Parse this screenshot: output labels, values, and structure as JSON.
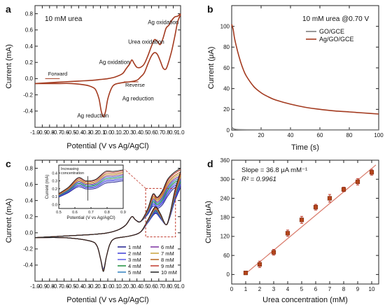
{
  "chart_data": [
    {
      "panel": "a",
      "type": "line",
      "annotation_title": "10 mM urea",
      "xlabel": "Potential (V vs Ag/AgCl)",
      "ylabel": "Current (mA)",
      "xlim": [
        -1.0,
        1.0
      ],
      "ylim": [
        -0.6,
        0.9
      ],
      "xticks": [
        -1.0,
        -0.9,
        -0.8,
        -0.7,
        -0.6,
        -0.5,
        -0.4,
        -0.3,
        -0.2,
        -0.1,
        0.0,
        0.1,
        0.2,
        0.3,
        0.4,
        0.5,
        0.6,
        0.7,
        0.8,
        0.9,
        1.0
      ],
      "xtick_labels": [
        "-1.0",
        "-0.9",
        "-0.8",
        "-0.7",
        "-0.6",
        "-0.5",
        "-0.4",
        "-0.3",
        "-0.2",
        "-0.1",
        "0.0",
        "0.1",
        "0.2",
        "0.3",
        "0.4",
        "0.5",
        "0.6",
        "0.7",
        "0.8",
        "0.9",
        "1.0"
      ],
      "yticks": [
        -0.4,
        -0.2,
        0.0,
        0.2,
        0.4,
        0.6,
        0.8
      ],
      "ytick_labels": [
        "-0.4",
        "-0.2",
        "0.0",
        "0.2",
        "0.4",
        "0.6",
        "0.8"
      ],
      "annotations": [
        "Forward",
        "Reverse",
        "Ag oxidation",
        "Urea oxidation",
        "Ag oxidation",
        "Ag reduction",
        "Ag reduction"
      ],
      "series": [
        {
          "color": "#a33a1f",
          "forward": [
            [
              -1.0,
              -0.06
            ],
            [
              -0.8,
              -0.05
            ],
            [
              -0.6,
              -0.04
            ],
            [
              -0.4,
              -0.03
            ],
            [
              -0.2,
              -0.02
            ],
            [
              -0.1,
              -0.01
            ],
            [
              0.0,
              0.0
            ],
            [
              0.1,
              0.02
            ],
            [
              0.2,
              0.06
            ],
            [
              0.25,
              0.12
            ],
            [
              0.3,
              0.18
            ],
            [
              0.33,
              0.23
            ],
            [
              0.36,
              0.19
            ],
            [
              0.4,
              0.14
            ],
            [
              0.45,
              0.14
            ],
            [
              0.5,
              0.18
            ],
            [
              0.55,
              0.28
            ],
            [
              0.6,
              0.4
            ],
            [
              0.64,
              0.48
            ],
            [
              0.68,
              0.46
            ],
            [
              0.72,
              0.42
            ],
            [
              0.76,
              0.5
            ],
            [
              0.8,
              0.62
            ],
            [
              0.84,
              0.66
            ],
            [
              0.88,
              0.72
            ],
            [
              0.92,
              0.76
            ],
            [
              0.96,
              0.77
            ],
            [
              1.0,
              0.8
            ]
          ],
          "reverse": [
            [
              1.0,
              0.79
            ],
            [
              0.96,
              0.7
            ],
            [
              0.92,
              0.52
            ],
            [
              0.88,
              0.35
            ],
            [
              0.84,
              0.22
            ],
            [
              0.8,
              0.12
            ],
            [
              0.76,
              0.13
            ],
            [
              0.72,
              0.22
            ],
            [
              0.68,
              0.3
            ],
            [
              0.64,
              0.32
            ],
            [
              0.6,
              0.28
            ],
            [
              0.55,
              0.18
            ],
            [
              0.5,
              0.07
            ],
            [
              0.45,
              0.02
            ],
            [
              0.4,
              -0.02
            ],
            [
              0.3,
              -0.04
            ],
            [
              0.2,
              -0.05
            ],
            [
              0.1,
              -0.07
            ],
            [
              0.05,
              -0.12
            ],
            [
              0.0,
              -0.25
            ],
            [
              -0.03,
              -0.4
            ],
            [
              -0.06,
              -0.47
            ],
            [
              -0.09,
              -0.4
            ],
            [
              -0.12,
              -0.25
            ],
            [
              -0.16,
              -0.15
            ],
            [
              -0.2,
              -0.11
            ],
            [
              -0.3,
              -0.08
            ],
            [
              -0.5,
              -0.06
            ],
            [
              -0.7,
              -0.06
            ],
            [
              -1.0,
              -0.06
            ]
          ]
        }
      ]
    },
    {
      "panel": "b",
      "type": "line",
      "annotation_title": "10 mM urea @0.70 V",
      "xlabel": "Time (s)",
      "ylabel": "Current (μA)",
      "xlim": [
        0,
        100
      ],
      "ylim": [
        0,
        120
      ],
      "xticks": [
        0,
        20,
        40,
        60,
        80,
        100
      ],
      "xtick_labels": [
        "0",
        "20",
        "40",
        "60",
        "80",
        "100"
      ],
      "yticks": [
        0,
        20,
        40,
        60,
        80,
        100
      ],
      "ytick_labels": [
        "0",
        "20",
        "40",
        "60",
        "80",
        "100"
      ],
      "series": [
        {
          "name": "GO/GCE",
          "color": "#7f7f7f",
          "x": [
            0,
            1,
            2,
            3,
            5,
            10,
            20,
            40,
            60,
            80,
            100
          ],
          "y": [
            3,
            1.5,
            1,
            0.7,
            0.5,
            0.3,
            0.2,
            0.2,
            0.2,
            0.2,
            0.2
          ]
        },
        {
          "name": "Ag/GO/GCE",
          "color": "#a33a1f",
          "x": [
            0,
            1,
            2,
            4,
            6,
            8,
            10,
            15,
            20,
            25,
            30,
            40,
            50,
            60,
            70,
            80,
            90,
            100
          ],
          "y": [
            102,
            97,
            88,
            76,
            66,
            58,
            52,
            42,
            36,
            32,
            29,
            25,
            22,
            20,
            18.5,
            17.5,
            16.5,
            15.5
          ]
        }
      ]
    },
    {
      "panel": "c",
      "type": "line",
      "xlabel": "Potential (V vs Ag/AgCl)",
      "ylabel": "Current (mA)",
      "xlim": [
        -1.0,
        1.0
      ],
      "ylim": [
        -0.6,
        0.9
      ],
      "xticks": [
        -1.0,
        -0.9,
        -0.8,
        -0.7,
        -0.6,
        -0.5,
        -0.4,
        -0.3,
        -0.2,
        -0.1,
        0.0,
        0.1,
        0.2,
        0.3,
        0.4,
        0.5,
        0.6,
        0.7,
        0.8,
        0.9,
        1.0
      ],
      "xtick_labels": [
        "-1.0",
        "-0.9",
        "-0.8",
        "-0.7",
        "-0.6",
        "-0.5",
        "-0.4",
        "-0.3",
        "-0.2",
        "-0.1",
        "0.0",
        "0.1",
        "0.2",
        "0.3",
        "0.4",
        "0.5",
        "0.6",
        "0.7",
        "0.8",
        "0.9",
        "1.0"
      ],
      "yticks": [
        -0.4,
        -0.2,
        0.0,
        0.2,
        0.4,
        0.6,
        0.8
      ],
      "ytick_labels": [
        "-0.4",
        "-0.2",
        "0.0",
        "0.2",
        "0.4",
        "0.6",
        "0.8"
      ],
      "legend_placement": "bottom-right",
      "series": [
        {
          "name": "1 mM",
          "color": "#1f1f8f",
          "peak": 0.34
        },
        {
          "name": "2 mM",
          "color": "#3a3ad6",
          "peak": 0.4
        },
        {
          "name": "3 mM",
          "color": "#5a5ae8",
          "peak": 0.45
        },
        {
          "name": "4 mM",
          "color": "#1b8f3a",
          "peak": 0.5
        },
        {
          "name": "5 mM",
          "color": "#2f7fbf",
          "peak": 0.55
        },
        {
          "name": "6 mM",
          "color": "#7a2fa0",
          "peak": 0.6
        },
        {
          "name": "7 mM",
          "color": "#c8a23a",
          "peak": 0.65
        },
        {
          "name": "8 mM",
          "color": "#b5651d",
          "peak": 0.7
        },
        {
          "name": "9 mM",
          "color": "#c0392b",
          "peak": 0.76
        },
        {
          "name": "10 mM",
          "color": "#222222",
          "peak": 0.8
        }
      ],
      "inset": {
        "annotation": "Increasing concentration",
        "xlabel": "Potential (V vs Ag/AgCl)",
        "ylabel": "Current (mA)",
        "xlim": [
          0.5,
          0.9
        ],
        "ylim": [
          -0.05,
          0.5
        ],
        "xticks": [
          0.5,
          0.6,
          0.7,
          0.8,
          0.9
        ],
        "xtick_labels": [
          "0.5",
          "0.6",
          "0.7",
          "0.8",
          "0.9"
        ],
        "yticks": [
          0.0,
          0.1,
          0.2,
          0.3,
          0.4
        ],
        "ytick_labels": [
          "0.0",
          "0.1",
          "0.2",
          "0.3",
          "0.4"
        ]
      }
    },
    {
      "panel": "d",
      "type": "scatter",
      "xlabel": "Urea concentration (mM)",
      "ylabel": "Current (μA)",
      "xlim": [
        0,
        10.5
      ],
      "ylim": [
        -30,
        360
      ],
      "xticks": [
        0,
        1,
        2,
        3,
        4,
        5,
        6,
        7,
        8,
        9,
        10
      ],
      "xtick_labels": [
        "0",
        "1",
        "2",
        "3",
        "4",
        "5",
        "6",
        "7",
        "8",
        "9",
        "10"
      ],
      "yticks": [
        0,
        60,
        120,
        180,
        240,
        300,
        360
      ],
      "ytick_labels": [
        "0",
        "60",
        "120",
        "180",
        "240",
        "300",
        "360"
      ],
      "annotation_slope": "Slope = 36.8 μA mM⁻¹",
      "annotation_r2": "R² = 0.9961",
      "fit": {
        "slope": 36.8,
        "intercept": -34
      },
      "x": [
        1,
        2,
        3,
        4,
        5,
        6,
        7,
        8,
        9,
        10
      ],
      "y": [
        5,
        32,
        70,
        130,
        172,
        212,
        240,
        268,
        292,
        322
      ],
      "err": [
        5,
        10,
        9,
        10,
        11,
        9,
        12,
        7,
        10,
        9
      ]
    }
  ]
}
